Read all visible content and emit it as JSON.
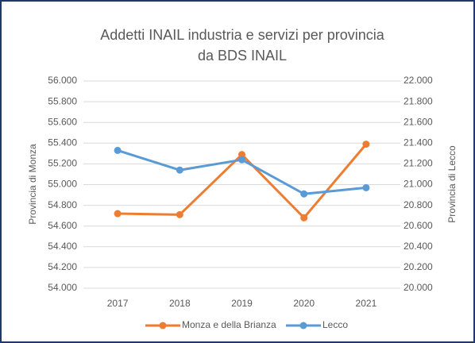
{
  "chart_data": {
    "type": "line",
    "title": [
      "Addetti INAIL industria e servizi per provincia",
      "da BDS INAIL"
    ],
    "ylabel": "Provincia di Monza",
    "y2label": "Provincia di Lecco",
    "categories": [
      "2017",
      "2018",
      "2019",
      "2020",
      "2021"
    ],
    "series": [
      {
        "name": "Monza e della Brianza",
        "color": "#ed7d31",
        "values": [
          54720,
          54710,
          55290,
          54680,
          55390
        ]
      },
      {
        "name": "Lecco",
        "color": "#5b9bd5",
        "axis": "y2",
        "values": [
          21330,
          21140,
          21240,
          20910,
          20970
        ]
      }
    ],
    "ylim": [
      54000,
      56000
    ],
    "yticks": [
      {
        "value": 54000,
        "label": "54.000"
      },
      {
        "value": 54200,
        "label": "54.200"
      },
      {
        "value": 54400,
        "label": "54.400"
      },
      {
        "value": 54600,
        "label": "54.600"
      },
      {
        "value": 54800,
        "label": "54.800"
      },
      {
        "value": 55000,
        "label": "55.000"
      },
      {
        "value": 55200,
        "label": "55.200"
      },
      {
        "value": 55400,
        "label": "55.400"
      },
      {
        "value": 55600,
        "label": "55.600"
      },
      {
        "value": 55800,
        "label": "55.800"
      },
      {
        "value": 56000,
        "label": "56.000"
      }
    ],
    "y2lim": [
      20000,
      22000
    ],
    "y2ticks": [
      {
        "value": 20000,
        "label": "20.000"
      },
      {
        "value": 20200,
        "label": "20.200"
      },
      {
        "value": 20400,
        "label": "20.400"
      },
      {
        "value": 20600,
        "label": "20.600"
      },
      {
        "value": 20800,
        "label": "20.800"
      },
      {
        "value": 21000,
        "label": "21.000"
      },
      {
        "value": 21200,
        "label": "21.200"
      },
      {
        "value": 21400,
        "label": "21.400"
      },
      {
        "value": 21600,
        "label": "21.600"
      },
      {
        "value": 21800,
        "label": "21.800"
      },
      {
        "value": 22000,
        "label": "22.000"
      }
    ],
    "grid": true,
    "legend": "bottom"
  }
}
